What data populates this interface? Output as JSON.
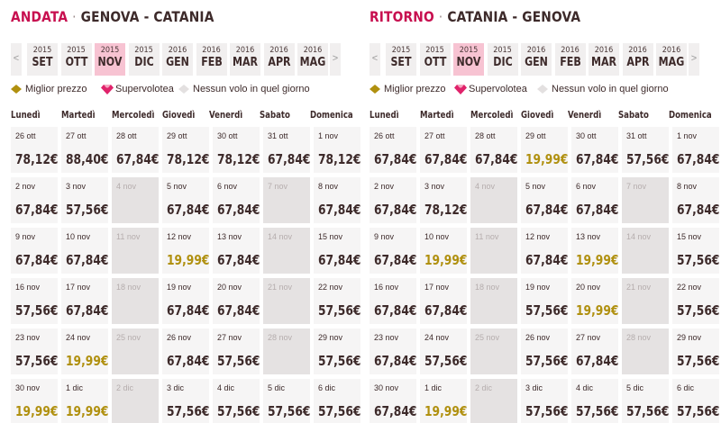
{
  "colors": {
    "accent": "#c70f4f",
    "active_month": "#f7c3d2",
    "best_price": "#b0900f",
    "cell_bg": "#f6f5f5",
    "empty_cell": "#e5e2e2"
  },
  "legend": {
    "best_price": "Miglior prezzo",
    "supervolotea": "Supervolotea",
    "no_flight": "Nessun volo in quel giorno"
  },
  "weekdays": [
    "Lunedì",
    "Martedì",
    "Mercoledì",
    "Giovedì",
    "Venerdì",
    "Sabato",
    "Domenica"
  ],
  "outbound": {
    "direction": "ANDATA",
    "separator": "·",
    "route": "GENOVA - CATANIA",
    "prev_arrow": "<",
    "next_arrow": ">",
    "months": [
      {
        "year": "2015",
        "month": "SET",
        "active": false
      },
      {
        "year": "2015",
        "month": "OTT",
        "active": false
      },
      {
        "year": "2015",
        "month": "NOV",
        "active": true
      },
      {
        "year": "2015",
        "month": "DIC",
        "active": false
      },
      {
        "year": "2016",
        "month": "GEN",
        "active": false
      },
      {
        "year": "2016",
        "month": "FEB",
        "active": false
      },
      {
        "year": "2016",
        "month": "MAR",
        "active": false
      },
      {
        "year": "2016",
        "month": "APR",
        "active": false
      },
      {
        "year": "2016",
        "month": "MAG",
        "active": false
      }
    ],
    "weeks": [
      [
        {
          "date": "26 ott",
          "price": "78,12€"
        },
        {
          "date": "27 ott",
          "price": "88,40€"
        },
        {
          "date": "28 ott",
          "price": "67,84€"
        },
        {
          "date": "29 ott",
          "price": "78,12€"
        },
        {
          "date": "30 ott",
          "price": "78,12€"
        },
        {
          "date": "31 ott",
          "price": "67,84€"
        },
        {
          "date": "1 nov",
          "price": "78,12€"
        }
      ],
      [
        {
          "date": "2 nov",
          "price": "67,84€"
        },
        {
          "date": "3 nov",
          "price": "57,56€"
        },
        {
          "date": "4 nov",
          "price": "",
          "empty": true
        },
        {
          "date": "5 nov",
          "price": "67,84€"
        },
        {
          "date": "6 nov",
          "price": "67,84€"
        },
        {
          "date": "7 nov",
          "price": "",
          "empty": true
        },
        {
          "date": "8 nov",
          "price": "67,84€"
        }
      ],
      [
        {
          "date": "9 nov",
          "price": "67,84€"
        },
        {
          "date": "10 nov",
          "price": "67,84€"
        },
        {
          "date": "11 nov",
          "price": "",
          "empty": true
        },
        {
          "date": "12 nov",
          "price": "19,99€",
          "best": true
        },
        {
          "date": "13 nov",
          "price": "67,84€"
        },
        {
          "date": "14 nov",
          "price": "",
          "empty": true
        },
        {
          "date": "15 nov",
          "price": "67,84€"
        }
      ],
      [
        {
          "date": "16 nov",
          "price": "57,56€"
        },
        {
          "date": "17 nov",
          "price": "67,84€"
        },
        {
          "date": "18 nov",
          "price": "",
          "empty": true
        },
        {
          "date": "19 nov",
          "price": "67,84€"
        },
        {
          "date": "20 nov",
          "price": "67,84€"
        },
        {
          "date": "21 nov",
          "price": "",
          "empty": true
        },
        {
          "date": "22 nov",
          "price": "57,56€"
        }
      ],
      [
        {
          "date": "23 nov",
          "price": "57,56€"
        },
        {
          "date": "24 nov",
          "price": "19,99€",
          "best": true
        },
        {
          "date": "25 nov",
          "price": "",
          "empty": true
        },
        {
          "date": "26 nov",
          "price": "67,84€"
        },
        {
          "date": "27 nov",
          "price": "57,56€"
        },
        {
          "date": "28 nov",
          "price": "",
          "empty": true
        },
        {
          "date": "29 nov",
          "price": "57,56€"
        }
      ],
      [
        {
          "date": "30 nov",
          "price": "19,99€",
          "best": true
        },
        {
          "date": "1 dic",
          "price": "19,99€",
          "best": true
        },
        {
          "date": "2 dic",
          "price": "",
          "empty": true
        },
        {
          "date": "3 dic",
          "price": "57,56€"
        },
        {
          "date": "4 dic",
          "price": "57,56€"
        },
        {
          "date": "5 dic",
          "price": "57,56€"
        },
        {
          "date": "6 dic",
          "price": "57,56€"
        }
      ]
    ]
  },
  "return": {
    "direction": "RITORNO",
    "separator": "·",
    "route": "CATANIA - GENOVA",
    "prev_arrow": "<",
    "next_arrow": ">",
    "months": [
      {
        "year": "2015",
        "month": "SET",
        "active": false
      },
      {
        "year": "2015",
        "month": "OTT",
        "active": false
      },
      {
        "year": "2015",
        "month": "NOV",
        "active": true
      },
      {
        "year": "2015",
        "month": "DIC",
        "active": false
      },
      {
        "year": "2016",
        "month": "GEN",
        "active": false
      },
      {
        "year": "2016",
        "month": "FEB",
        "active": false
      },
      {
        "year": "2016",
        "month": "MAR",
        "active": false
      },
      {
        "year": "2016",
        "month": "APR",
        "active": false
      },
      {
        "year": "2016",
        "month": "MAG",
        "active": false
      }
    ],
    "weeks": [
      [
        {
          "date": "26 ott",
          "price": "67,84€"
        },
        {
          "date": "27 ott",
          "price": "67,84€"
        },
        {
          "date": "28 ott",
          "price": "67,84€"
        },
        {
          "date": "29 ott",
          "price": "19,99€",
          "best": true
        },
        {
          "date": "30 ott",
          "price": "67,84€"
        },
        {
          "date": "31 ott",
          "price": "57,56€"
        },
        {
          "date": "1 nov",
          "price": "67,84€"
        }
      ],
      [
        {
          "date": "2 nov",
          "price": "67,84€"
        },
        {
          "date": "3 nov",
          "price": "78,12€"
        },
        {
          "date": "4 nov",
          "price": "",
          "empty": true
        },
        {
          "date": "5 nov",
          "price": "67,84€"
        },
        {
          "date": "6 nov",
          "price": "67,84€"
        },
        {
          "date": "7 nov",
          "price": "",
          "empty": true
        },
        {
          "date": "8 nov",
          "price": "67,84€"
        }
      ],
      [
        {
          "date": "9 nov",
          "price": "67,84€"
        },
        {
          "date": "10 nov",
          "price": "19,99€",
          "best": true
        },
        {
          "date": "11 nov",
          "price": "",
          "empty": true
        },
        {
          "date": "12 nov",
          "price": "67,84€"
        },
        {
          "date": "13 nov",
          "price": "19,99€",
          "best": true
        },
        {
          "date": "14 nov",
          "price": "",
          "empty": true
        },
        {
          "date": "15 nov",
          "price": "57,56€"
        }
      ],
      [
        {
          "date": "16 nov",
          "price": "67,84€"
        },
        {
          "date": "17 nov",
          "price": "67,84€"
        },
        {
          "date": "18 nov",
          "price": "",
          "empty": true
        },
        {
          "date": "19 nov",
          "price": "57,56€"
        },
        {
          "date": "20 nov",
          "price": "19,99€",
          "best": true
        },
        {
          "date": "21 nov",
          "price": "",
          "empty": true
        },
        {
          "date": "22 nov",
          "price": "57,56€"
        }
      ],
      [
        {
          "date": "23 nov",
          "price": "67,84€"
        },
        {
          "date": "24 nov",
          "price": "57,56€"
        },
        {
          "date": "25 nov",
          "price": "",
          "empty": true
        },
        {
          "date": "26 nov",
          "price": "57,56€"
        },
        {
          "date": "27 nov",
          "price": "67,84€"
        },
        {
          "date": "28 nov",
          "price": "",
          "empty": true
        },
        {
          "date": "29 nov",
          "price": "57,56€"
        }
      ],
      [
        {
          "date": "30 nov",
          "price": "67,84€"
        },
        {
          "date": "1 dic",
          "price": "19,99€",
          "best": true
        },
        {
          "date": "2 dic",
          "price": "",
          "empty": true
        },
        {
          "date": "3 dic",
          "price": "57,56€"
        },
        {
          "date": "4 dic",
          "price": "57,56€"
        },
        {
          "date": "5 dic",
          "price": "57,56€"
        },
        {
          "date": "6 dic",
          "price": "57,56€"
        }
      ]
    ]
  }
}
